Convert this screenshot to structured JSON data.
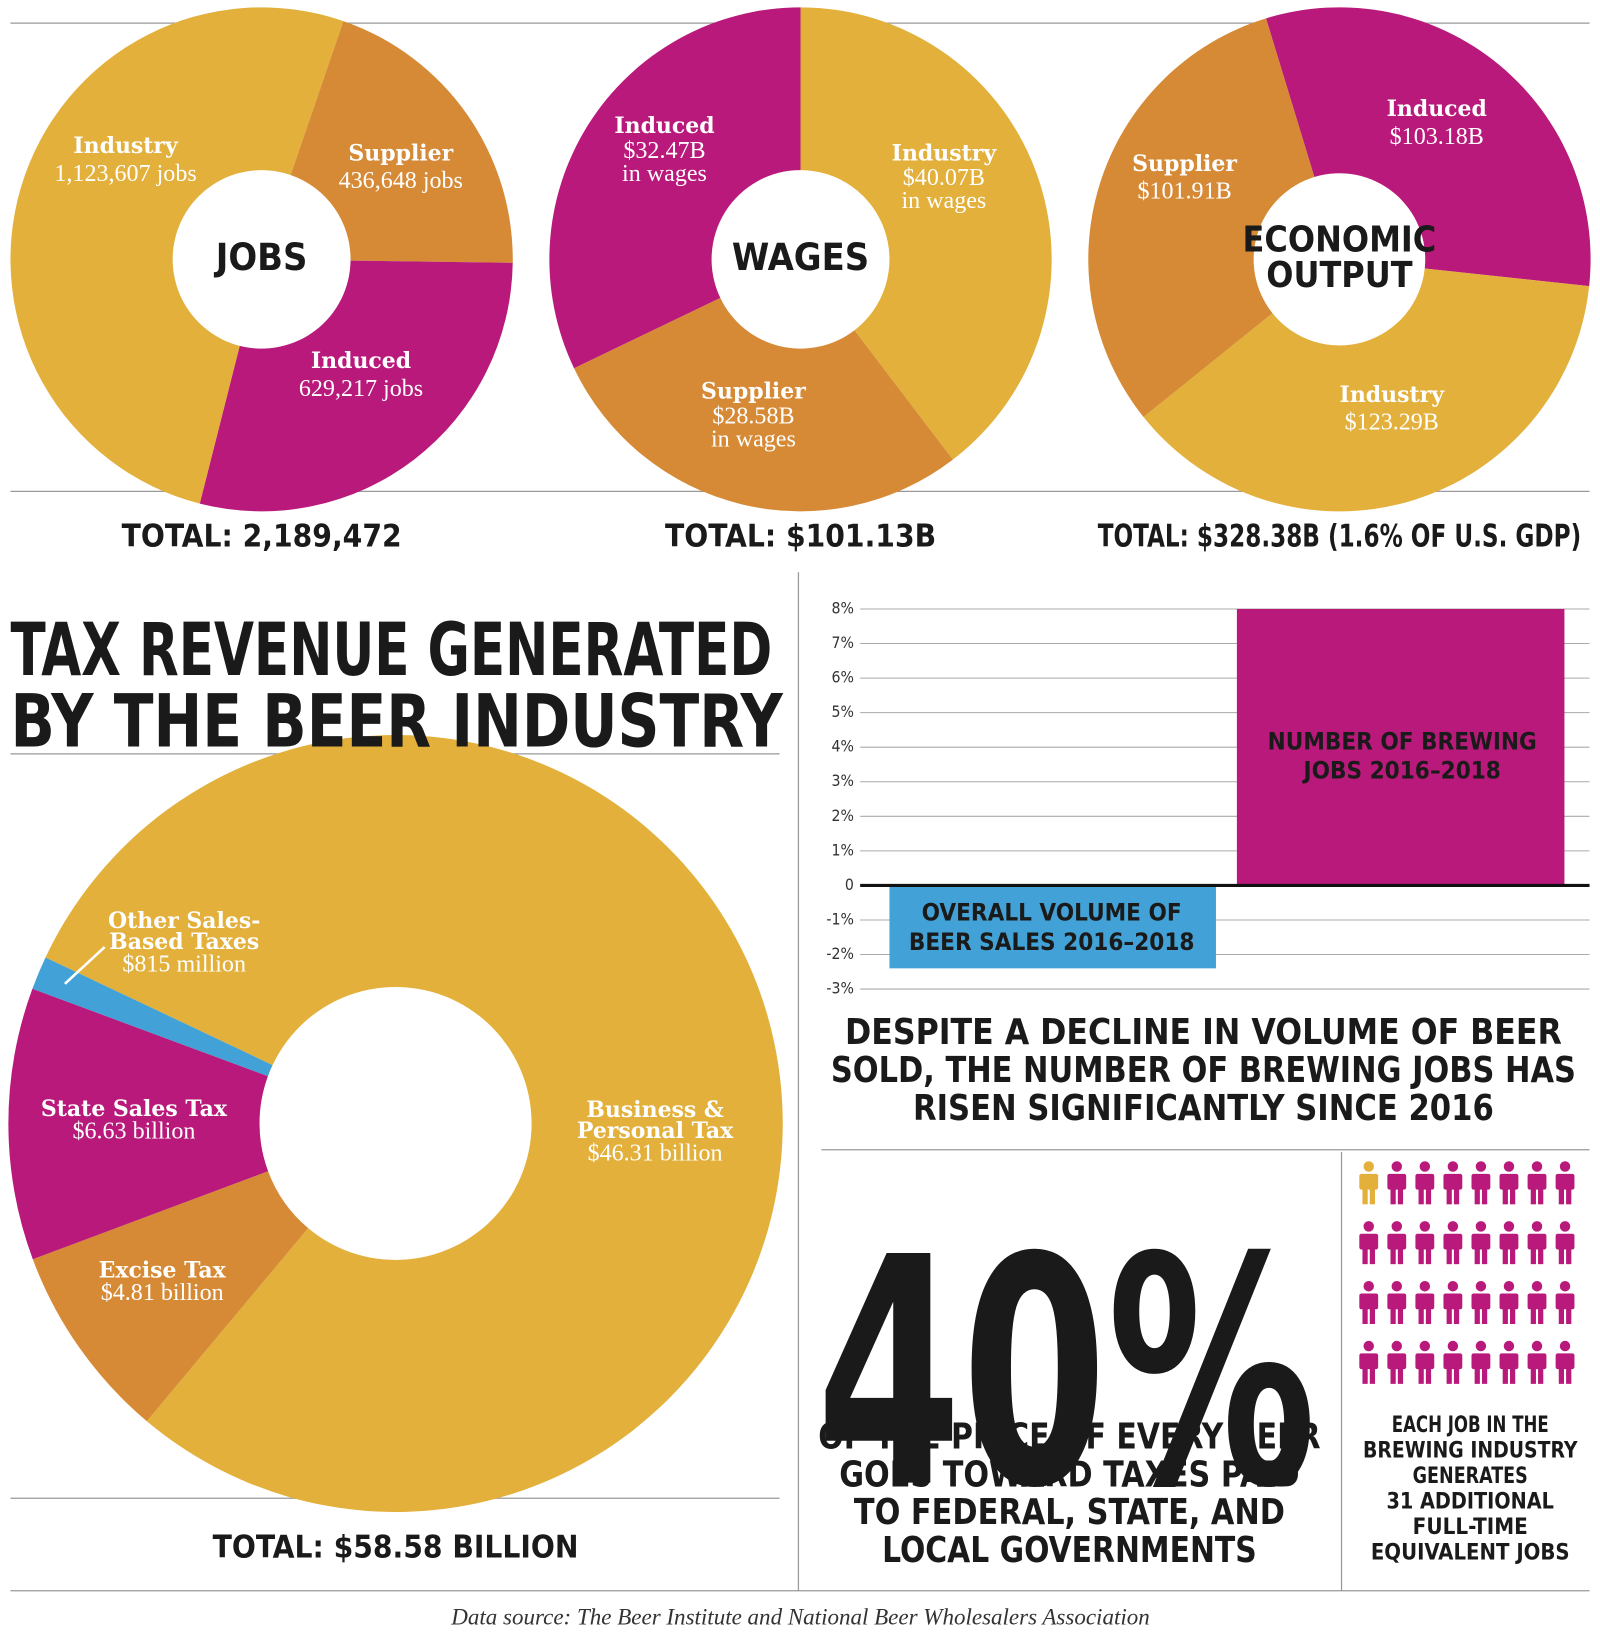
{
  "chart_data": [
    {
      "type": "donut",
      "center_label": [
        "JOBS"
      ],
      "categories": [
        "Supplier",
        "Induced",
        "Industry"
      ],
      "values": [
        436648,
        629217,
        1123607
      ],
      "value_labels": [
        [
          "436,648 jobs"
        ],
        [
          "629,217 jobs"
        ],
        [
          "1,123,607 jobs"
        ]
      ],
      "colors": [
        "#d68a36",
        "#b8197a",
        "#e2b03b"
      ],
      "total": "TOTAL: 2,189,472"
    },
    {
      "type": "donut",
      "center_label": [
        "WAGES"
      ],
      "categories": [
        "Industry",
        "Supplier",
        "Induced"
      ],
      "values": [
        40.07,
        28.58,
        32.47
      ],
      "value_labels": [
        [
          "$40.07B",
          "in wages"
        ],
        [
          "$28.58B",
          "in wages"
        ],
        [
          "$32.47B",
          "in wages"
        ]
      ],
      "colors": [
        "#e2b03b",
        "#d68a36",
        "#b8197a"
      ],
      "total": "TOTAL: $101.13B"
    },
    {
      "type": "donut",
      "center_label": [
        "ECONOMIC",
        "OUTPUT"
      ],
      "categories": [
        "Induced",
        "Industry",
        "Supplier"
      ],
      "values": [
        103.18,
        123.29,
        101.91
      ],
      "value_labels": [
        [
          "$103.18B"
        ],
        [
          "$123.29B"
        ],
        [
          "$101.91B"
        ]
      ],
      "colors": [
        "#b8197a",
        "#e2b03b",
        "#d68a36"
      ],
      "total": "TOTAL: $328.38B (1.6% OF U.S. GDP)"
    },
    {
      "type": "donut",
      "title": [
        "TAX REVENUE GENERATED",
        "BY THE BEER INDUSTRY"
      ],
      "categories": [
        [
          "Business &",
          "Personal Tax"
        ],
        [
          "Excise Tax"
        ],
        [
          "State Sales Tax"
        ],
        [
          "Other Sales-",
          "Based Taxes"
        ]
      ],
      "values": [
        46.31,
        4.81,
        6.63,
        0.815
      ],
      "value_labels": [
        [
          "$46.31 billion"
        ],
        [
          "$4.81 billion"
        ],
        [
          "$6.63 billion"
        ],
        [
          "$815 million"
        ]
      ],
      "colors": [
        "#e2b03b",
        "#d68a36",
        "#b8197a",
        "#42a1d6"
      ],
      "total": "TOTAL: $58.58 BILLION"
    },
    {
      "type": "bar",
      "categories": [
        [
          "OVERALL VOLUME OF",
          "BEER SALES 2016–2018"
        ],
        [
          "NUMBER OF BREWING",
          "JOBS 2016–2018"
        ]
      ],
      "values": [
        -2.4,
        8
      ],
      "colors": [
        "#42a1d6",
        "#b8197a"
      ],
      "ylim": [
        -3,
        8
      ],
      "yticks": [
        {
          "value": 8,
          "label": "8%"
        },
        {
          "value": 7,
          "label": "7%"
        },
        {
          "value": 6,
          "label": "6%"
        },
        {
          "value": 5,
          "label": "5%"
        },
        {
          "value": 4,
          "label": "4%"
        },
        {
          "value": 3,
          "label": "3%"
        },
        {
          "value": 2,
          "label": "2%"
        },
        {
          "value": 1,
          "label": "1%"
        },
        0,
        {
          "value": -1,
          "label": "-1%"
        },
        {
          "value": -2,
          "label": "-2%"
        },
        {
          "value": -3,
          "label": "-3%"
        }
      ],
      "grid": true,
      "caption": [
        "DESPITE A DECLINE IN VOLUME OF BEER",
        "SOLD, THE NUMBER OF BREWING JOBS HAS",
        "RISEN SIGNIFICANTLY SINCE 2016"
      ]
    }
  ],
  "stat": {
    "text": "40%",
    "caption": [
      "OF THE PRICE OF EVERY BEER",
      "GOES TOWARD TAXES PAID",
      "TO FEDERAL, STATE, AND",
      "LOCAL GOVERNMENTS"
    ]
  },
  "pictogram": {
    "highlighted": 1,
    "count": 31,
    "highlight_color": "#e2b03b",
    "color": "#b8197a",
    "caption": [
      "EACH JOB IN THE",
      "BREWING INDUSTRY",
      "GENERATES",
      "31 ADDITIONAL",
      "FULL-TIME",
      "EQUIVALENT JOBS"
    ]
  },
  "source": "Data source: The Beer Institute and National Beer Wholesalers Association"
}
